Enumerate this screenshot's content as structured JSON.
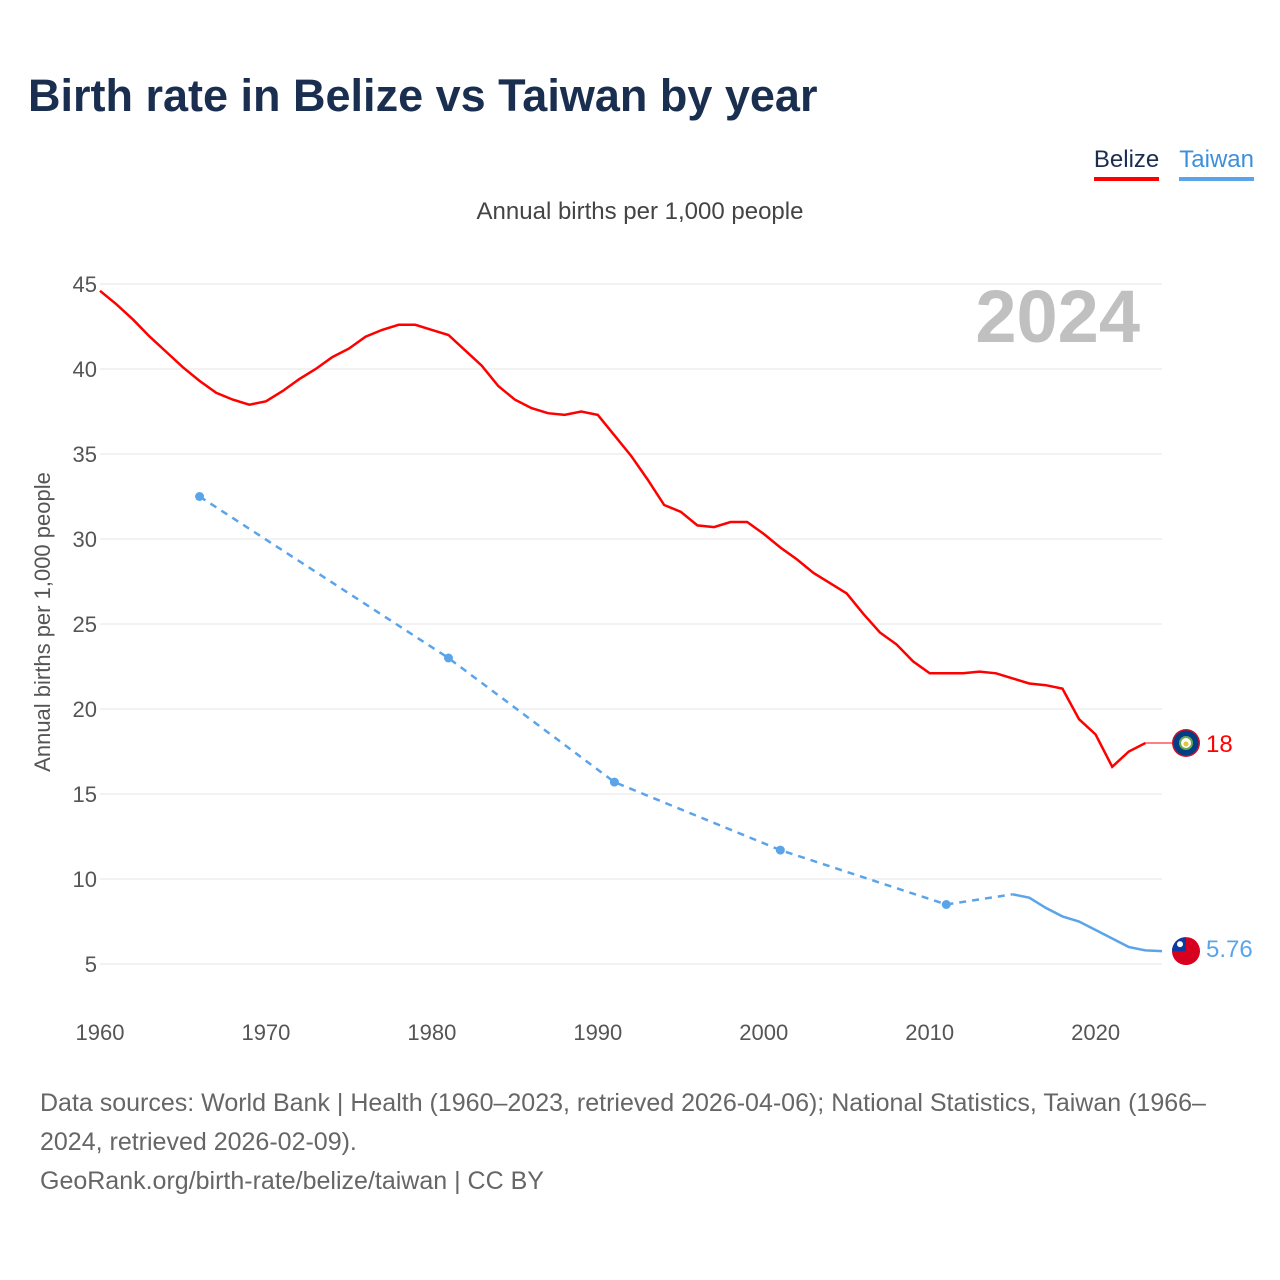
{
  "title": "Birth rate in Belize vs Taiwan by year",
  "legend": [
    {
      "label": "Belize",
      "color": "#ff0000"
    },
    {
      "label": "Taiwan",
      "color": "#5ba4ea"
    }
  ],
  "year_watermark": "2024",
  "footer": {
    "sources": "Data sources: World Bank | Health (1960–2023, retrieved 2026-04-06); National Statistics, Taiwan (1966–2024, retrieved 2026-02-09).",
    "credit": "GeoRank.org/birth-rate/belize/taiwan | CC BY"
  },
  "chart_data": {
    "type": "line",
    "title": "Birth rate in Belize vs Taiwan by year",
    "subtitle": "Annual births per 1,000 people",
    "ylabel": "Annual births per 1,000 people",
    "xlabel": "",
    "xlim": [
      1960,
      2024
    ],
    "ylim": [
      5,
      45
    ],
    "xticks": [
      1960,
      1970,
      1980,
      1990,
      2000,
      2010,
      2020
    ],
    "yticks": [
      5,
      10,
      15,
      20,
      25,
      30,
      35,
      40,
      45
    ],
    "grid": true,
    "legend_position": "top-right",
    "series": [
      {
        "name": "Belize",
        "color": "#ff0000",
        "end_label": "18",
        "x": [
          1960,
          1961,
          1962,
          1963,
          1964,
          1965,
          1966,
          1967,
          1968,
          1969,
          1970,
          1971,
          1972,
          1973,
          1974,
          1975,
          1976,
          1977,
          1978,
          1979,
          1980,
          1981,
          1982,
          1983,
          1984,
          1985,
          1986,
          1987,
          1988,
          1989,
          1990,
          1991,
          1992,
          1993,
          1994,
          1995,
          1996,
          1997,
          1998,
          1999,
          2000,
          2001,
          2002,
          2003,
          2004,
          2005,
          2006,
          2007,
          2008,
          2009,
          2010,
          2011,
          2012,
          2013,
          2014,
          2015,
          2016,
          2017,
          2018,
          2019,
          2020,
          2021,
          2022,
          2023
        ],
        "y": [
          44.6,
          43.8,
          42.9,
          41.9,
          41.0,
          40.1,
          39.3,
          38.6,
          38.2,
          37.9,
          38.1,
          38.7,
          39.4,
          40.0,
          40.7,
          41.2,
          41.9,
          42.3,
          42.6,
          42.6,
          42.3,
          42.0,
          41.1,
          40.2,
          39.0,
          38.2,
          37.7,
          37.4,
          37.3,
          37.5,
          37.3,
          36.1,
          34.9,
          33.5,
          32.0,
          31.6,
          30.8,
          30.7,
          31.0,
          31.0,
          30.3,
          29.5,
          28.8,
          28.0,
          27.4,
          26.8,
          25.6,
          24.5,
          23.8,
          22.8,
          22.1,
          22.1,
          22.1,
          22.2,
          22.1,
          21.8,
          21.5,
          21.4,
          21.2,
          19.4,
          18.5,
          16.6,
          17.5,
          18.0
        ]
      },
      {
        "name": "Taiwan",
        "color": "#5ba4ea",
        "end_label": "5.76",
        "x": [
          1966,
          1981,
          1991,
          2001,
          2011,
          2015,
          2016,
          2017,
          2018,
          2019,
          2020,
          2021,
          2022,
          2023,
          2024
        ],
        "y": [
          32.5,
          23.0,
          15.7,
          11.7,
          8.5,
          9.1,
          8.9,
          8.3,
          7.8,
          7.5,
          7.0,
          6.5,
          6.0,
          5.8,
          5.76
        ]
      }
    ]
  }
}
